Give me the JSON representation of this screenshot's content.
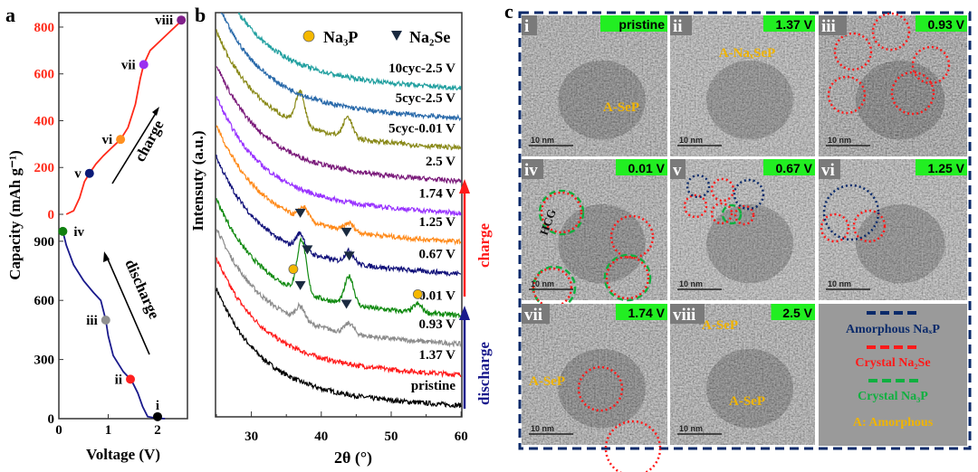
{
  "panel_labels": {
    "a": "a",
    "b": "b",
    "c": "c"
  },
  "chart_data": [
    {
      "type": "line",
      "panel": "a",
      "xlabel": "Voltage (V)",
      "ylabel": "Capacity (mAh g⁻¹)",
      "xlim": [
        0,
        2.6
      ],
      "xticks": [
        "0",
        "1",
        "2"
      ],
      "charge_yticks": [
        "0",
        "200",
        "400",
        "600",
        "800"
      ],
      "discharge_yticks": [
        "0",
        "300",
        "600",
        "900"
      ],
      "charge_color": "#ff2a1a",
      "discharge_color": "#1a1a8c",
      "series": [
        {
          "name": "charge",
          "x": [
            0.15,
            0.3,
            0.42,
            0.52,
            0.62,
            0.75,
            0.9,
            1.05,
            1.25,
            1.4,
            1.55,
            1.65,
            1.72,
            1.85,
            2.1,
            2.3,
            2.5
          ],
          "y": [
            0,
            15,
            70,
            140,
            175,
            215,
            250,
            280,
            320,
            370,
            470,
            580,
            640,
            700,
            750,
            790,
            830
          ]
        },
        {
          "name": "discharge",
          "x": [
            2.15,
            1.95,
            1.8,
            1.7,
            1.6,
            1.5,
            1.45,
            1.3,
            1.1,
            1.0,
            0.95,
            0.85,
            0.7,
            0.5,
            0.3,
            0.15,
            0.08
          ],
          "y": [
            0,
            3,
            10,
            60,
            130,
            180,
            200,
            240,
            320,
            420,
            500,
            600,
            640,
            700,
            780,
            880,
            950
          ]
        }
      ],
      "points": [
        {
          "label": "i",
          "series": "discharge",
          "x": 2.0,
          "y": 10,
          "color": "#000000"
        },
        {
          "label": "ii",
          "series": "discharge",
          "x": 1.45,
          "y": 200,
          "color": "#ff2020"
        },
        {
          "label": "iii",
          "series": "discharge",
          "x": 0.95,
          "y": 500,
          "color": "#909090"
        },
        {
          "label": "iv",
          "series": "discharge",
          "x": 0.08,
          "y": 950,
          "color": "#108010"
        },
        {
          "label": "v",
          "series": "charge",
          "x": 0.62,
          "y": 175,
          "color": "#0a1a78"
        },
        {
          "label": "vi",
          "series": "charge",
          "x": 1.25,
          "y": 320,
          "color": "#ff9020"
        },
        {
          "label": "vii",
          "series": "charge",
          "x": 1.72,
          "y": 640,
          "color": "#9a30f0"
        },
        {
          "label": "viii",
          "series": "charge",
          "x": 2.48,
          "y": 830,
          "color": "#80208a"
        }
      ],
      "annotations": {
        "charge": "charge",
        "discharge": "discharge"
      }
    },
    {
      "type": "line",
      "panel": "b",
      "xlabel": "2θ (°)",
      "ylabel": "Intensuty (a.u.)",
      "xlim": [
        25,
        60
      ],
      "ylim": [
        0,
        100
      ],
      "xticks": [
        "30",
        "40",
        "50",
        "60"
      ],
      "legend": [
        {
          "symbol": "circle",
          "label": "Na₃P",
          "color": "#f5b800"
        },
        {
          "symbol": "triangle-down",
          "label": "Na₂Se",
          "color": "#1a2a40"
        }
      ],
      "series": [
        {
          "name": "pristine",
          "color": "#000000",
          "offset": 2.7,
          "peaks": []
        },
        {
          "name": "1.37 V",
          "color": "#ff1a1a",
          "offset": 10.3,
          "peaks": []
        },
        {
          "name": "0.93 V",
          "color": "#8c8c8c",
          "offset": 17.9,
          "peaks": [
            [
              37,
              3.5
            ],
            [
              44,
              2.5
            ]
          ]
        },
        {
          "name": "0.01 V",
          "color": "#118a11",
          "offset": 25,
          "peaks": [
            [
              37.2,
              13
            ],
            [
              44,
              7
            ],
            [
              53.8,
              2
            ]
          ]
        },
        {
          "name": "0.67 V",
          "color": "#12127a",
          "offset": 35.3,
          "peaks": [
            [
              37,
              4
            ],
            [
              44,
              3
            ]
          ]
        },
        {
          "name": "1.25 V",
          "color": "#ff8a1a",
          "offset": 43.2,
          "peaks": [
            [
              37.5,
              3
            ],
            [
              44,
              2
            ]
          ]
        },
        {
          "name": "1.74 V",
          "color": "#9933ff",
          "offset": 50.3,
          "peaks": []
        },
        {
          "name": "2.5 V",
          "color": "#7a1a7a",
          "offset": 58.2,
          "peaks": []
        },
        {
          "name": "5cyc-0.01 V",
          "color": "#8a8a1a",
          "offset": 66.4,
          "peaks": [
            [
              37,
              8
            ],
            [
              43.8,
              5
            ]
          ]
        },
        {
          "name": "5cyc-2.5 V",
          "color": "#2a6aaa",
          "offset": 73.8,
          "peaks": []
        },
        {
          "name": "10cyc-2.5 V",
          "color": "#22a0a0",
          "offset": 81.2,
          "peaks": []
        }
      ],
      "markers": [
        {
          "type": "Na2Se",
          "x": 37,
          "series": "0.93 V"
        },
        {
          "type": "Na2Se",
          "x": 43.6,
          "series": "0.93 V"
        },
        {
          "type": "Na3P",
          "x": 36,
          "series": "0.01 V"
        },
        {
          "type": "Na2Se",
          "x": 38,
          "series": "0.01 V"
        },
        {
          "type": "Na2Se",
          "x": 44,
          "series": "0.01 V"
        },
        {
          "type": "Na3P",
          "x": 53.8,
          "series": "0.01 V"
        },
        {
          "type": "Na2Se",
          "x": 37,
          "series": "0.67 V"
        },
        {
          "type": "Na2Se",
          "x": 43.6,
          "series": "0.67 V"
        }
      ],
      "annotations": {
        "charge": "charge",
        "discharge": "discharge"
      }
    }
  ],
  "tem_panels": [
    {
      "numeral": "i",
      "state": "pristine",
      "labels": [
        {
          "text": "A-SeP"
        }
      ],
      "scale": "10 nm"
    },
    {
      "numeral": "ii",
      "state": "1.37 V",
      "labels": [
        {
          "text": "A-NaₓSeP"
        }
      ],
      "scale": "10 nm"
    },
    {
      "numeral": "iii",
      "state": "0.93 V",
      "labels": [],
      "scale": "10 nm"
    },
    {
      "numeral": "iv",
      "state": "0.01 V",
      "labels": [
        {
          "text": "HCG"
        }
      ],
      "scale": "10 nm"
    },
    {
      "numeral": "v",
      "state": "0.67 V",
      "labels": [],
      "scale": "10 nm"
    },
    {
      "numeral": "vi",
      "state": "1.25 V",
      "labels": [],
      "scale": "10 nm"
    },
    {
      "numeral": "vii",
      "state": "1.74 V",
      "labels": [
        {
          "text": "A-SeP"
        }
      ],
      "scale": "10 nm"
    },
    {
      "numeral": "viii",
      "state": "2.5 V",
      "labels": [
        {
          "text": "A-SeP"
        },
        {
          "text": "A-SeP"
        }
      ],
      "scale": "10 nm"
    }
  ],
  "tem_legend": [
    {
      "text": "Amorphous NaₓP",
      "color": "#0a2a6a"
    },
    {
      "text": "Crystal Na₂Se",
      "color": "#ff1a1a"
    },
    {
      "text": "Crystal Na₃P",
      "color": "#10b040"
    },
    {
      "text": "A: Amorphous",
      "color": "#f0b400"
    }
  ]
}
